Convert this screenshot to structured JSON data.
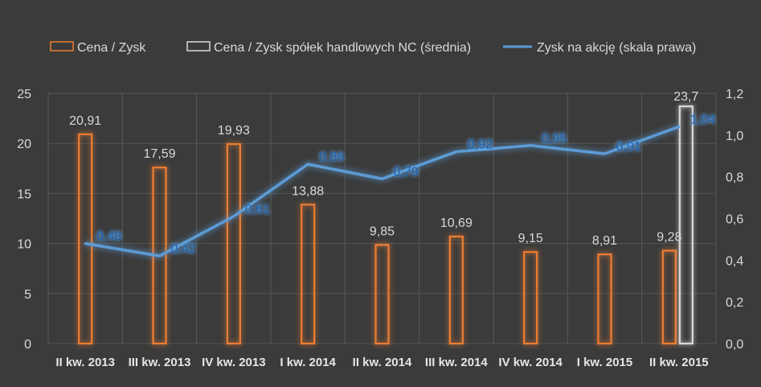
{
  "chart_data": {
    "type": "bar",
    "title": "",
    "categories": [
      "II kw. 2013",
      "III kw. 2013",
      "IV kw. 2013",
      "I kw. 2014",
      "II kw. 2014",
      "III kw. 2014",
      "IV kw. 2014",
      "I kw. 2015",
      "II kw. 2015"
    ],
    "series": [
      {
        "name": "Cena / Zysk",
        "kind": "bar",
        "axis": "left",
        "values": [
          20.91,
          17.59,
          19.93,
          13.88,
          9.85,
          10.69,
          9.15,
          8.91,
          9.28
        ],
        "labels": [
          "20,91",
          "17,59",
          "19,93",
          "13,88",
          "9,85",
          "10,69",
          "9,15",
          "8,91",
          "9,28"
        ],
        "color": "#ed7d31"
      },
      {
        "name": "Cena / Zysk spółek handlowych NC (średnia)",
        "kind": "bar",
        "axis": "left",
        "values": [
          null,
          null,
          null,
          null,
          null,
          null,
          null,
          null,
          23.7
        ],
        "labels": [
          "",
          "",
          "",
          "",
          "",
          "",
          "",
          "",
          "23,7"
        ],
        "color": "#d9d9d9"
      },
      {
        "name": "Zysk na akcję (skala prawa)",
        "kind": "line",
        "axis": "right",
        "values": [
          0.48,
          0.42,
          0.61,
          0.86,
          0.79,
          0.92,
          0.95,
          0.91,
          1.04
        ],
        "labels": [
          "0,48",
          "0,42",
          "0,61",
          "0,86",
          "0,79",
          "0,92",
          "0,95",
          "0,91",
          "1,04"
        ],
        "color": "#5b9bd5"
      }
    ],
    "y_left": {
      "ylim": [
        0,
        25
      ],
      "ticks": [
        "0",
        "5",
        "10",
        "15",
        "20",
        "25"
      ]
    },
    "y_right": {
      "ylim": [
        0,
        1.2
      ],
      "ticks": [
        "0,0",
        "0,2",
        "0,4",
        "0,6",
        "0,8",
        "1,0",
        "1,2"
      ]
    },
    "grid": true,
    "legend_position": "top"
  }
}
